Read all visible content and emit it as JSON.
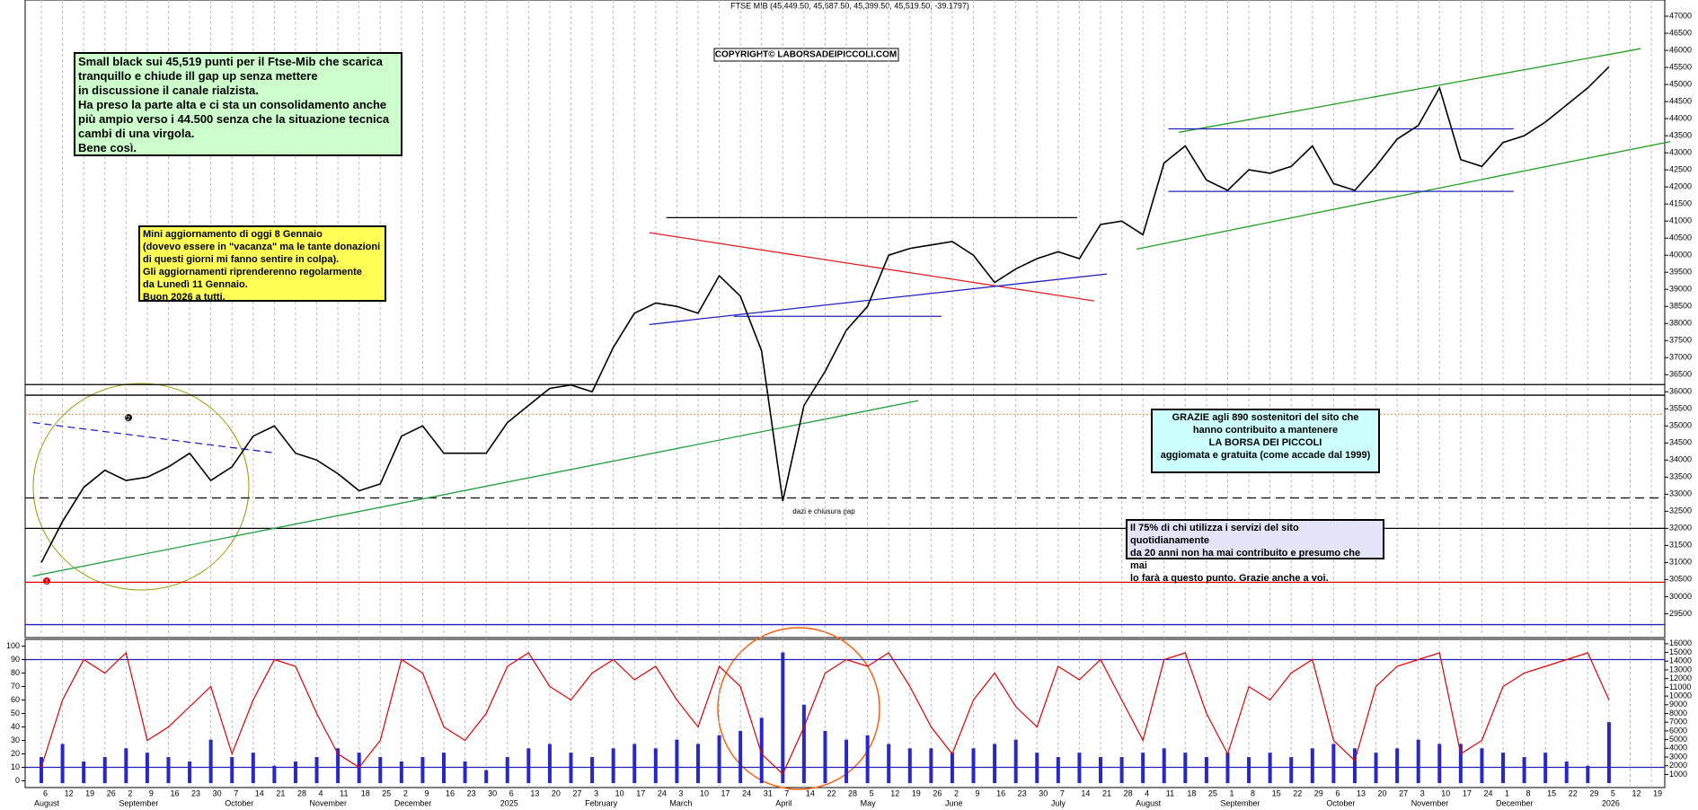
{
  "header": "FTSE MIB (45,449.50, 45,687.50, 45,399.50, 45,519.50, -39.1797)",
  "copyright": "COPYRIGHT© LABORSADEIPICCOLI.COM",
  "gap_note": "dazi e chiusura gap",
  "markers": [
    "1",
    "2"
  ],
  "notes": [
    {
      "fill": "#ccffcc",
      "lines": [
        "Small black sui 45,519 punti per il Ftse-Mib che scarica",
        "tranquillo e chiude ill gap up senza mettere",
        "in discussione il canale rialzista.",
        "Ha preso la parte alta e ci sta un consolidamento anche",
        "più ampio verso i 44.500 senza che la situazione tecnica",
        "cambi di una virgola.",
        "Bene così."
      ]
    },
    {
      "fill": "#ffff55",
      "lines": [
        "Mini aggiornamento di oggi 8 Gennaio",
        "(dovevo essere in \"vacanza\" ma le tante donazioni",
        "di questi giorni mi fanno sentire in colpa).",
        "Gli aggiornamenti riprenderenno regolarmente",
        "da Lunedì 11 Gennaio.",
        "Buon 2026 a tutti."
      ]
    },
    {
      "fill": "#ccffff",
      "lines": [
        "GRAZIE agli 890  sostenitori del sito che",
        "hanno contribuito a mantenere",
        "LA BORSA DEI PICCOLI",
        "aggiomata e gratuita (come accade dal 1999)"
      ]
    },
    {
      "fill": "#e4e4f8",
      "lines": [
        "Il 75% di chi utilizza i servizi del sito quotidianamente",
        "da 20 anni non ha mai contribuito e presumo che mai",
        "lo farà a questo punto. Grazie anche a voi."
      ]
    }
  ],
  "chart_data": [
    {
      "type": "line",
      "grid": "vertical",
      "categories": [
        "6",
        "12",
        "19",
        "26",
        "2",
        "9",
        "16",
        "23",
        "30",
        "7",
        "14",
        "21",
        "28",
        "4",
        "11",
        "18",
        "25",
        "2",
        "9",
        "16",
        "23",
        "30",
        "6",
        "13",
        "20",
        "27",
        "3",
        "10",
        "17",
        "24",
        "3",
        "10",
        "17",
        "24",
        "31",
        "7",
        "14",
        "22",
        "28",
        "5",
        "12",
        "19",
        "26",
        "2",
        "9",
        "16",
        "23",
        "30",
        "7",
        "14",
        "21",
        "28",
        "4",
        "11",
        "18",
        "25",
        "1",
        "8",
        "15",
        "22",
        "29",
        "6",
        "13",
        "20",
        "27",
        "3",
        "10",
        "17",
        "24",
        "1",
        "8",
        "15",
        "22",
        "29",
        "5",
        "12",
        "19"
      ],
      "months": [
        {
          "label": "August",
          "at": 0
        },
        {
          "label": "September",
          "at": 4
        },
        {
          "label": "October",
          "at": 9
        },
        {
          "label": "November",
          "at": 13
        },
        {
          "label": "December",
          "at": 17
        },
        {
          "label": "2025",
          "at": 22
        },
        {
          "label": "February",
          "at": 26
        },
        {
          "label": "March",
          "at": 30
        },
        {
          "label": "April",
          "at": 35
        },
        {
          "label": "May",
          "at": 39
        },
        {
          "label": "June",
          "at": 43
        },
        {
          "label": "July",
          "at": 48
        },
        {
          "label": "August",
          "at": 52
        },
        {
          "label": "September",
          "at": 56
        },
        {
          "label": "October",
          "at": 61
        },
        {
          "label": "November",
          "at": 65
        },
        {
          "label": "December",
          "at": 69
        },
        {
          "label": "2026",
          "at": 74
        }
      ],
      "series": [
        {
          "color": "#000000",
          "values": [
            31000,
            32200,
            33200,
            33700,
            33400,
            33500,
            33800,
            34200,
            33400,
            33800,
            34700,
            35000,
            34200,
            34000,
            33600,
            33100,
            33300,
            34700,
            35000,
            34200,
            34200,
            34200,
            35100,
            35600,
            36100,
            36200,
            36000,
            37300,
            38300,
            38600,
            38500,
            38300,
            39400,
            38800,
            37200,
            32800,
            35600,
            36600,
            37800,
            38500,
            40000,
            40200,
            40300,
            40400,
            40000,
            39200,
            39600,
            39900,
            40100,
            39900,
            40900,
            41000,
            40600,
            42700,
            43200,
            42200,
            41900,
            42500,
            42400,
            42600,
            43200,
            42100,
            41900,
            42600,
            43400,
            43800,
            44900,
            42800,
            42600,
            43300,
            43500,
            43900,
            44400,
            44900,
            45519,
            null,
            null
          ]
        }
      ],
      "ylim": [
        28800,
        47475
      ],
      "yticks": [
        29500,
        30000,
        30500,
        31000,
        31500,
        32000,
        32500,
        33000,
        33500,
        34000,
        34500,
        35000,
        35500,
        36000,
        36500,
        37000,
        37500,
        38000,
        38500,
        39000,
        39500,
        40000,
        40500,
        41000,
        41500,
        42000,
        42500,
        43000,
        43500,
        44000,
        44500,
        45000,
        45500,
        46000,
        46500,
        47000
      ],
      "levels": [
        {
          "value": 36210,
          "color": "#000000"
        },
        {
          "value": 35900,
          "color": "#000000"
        },
        {
          "value": 35340,
          "color": "#e0a060",
          "dash": "2,2"
        },
        {
          "value": 32890,
          "color": "#000000",
          "dash": "10,6"
        },
        {
          "value": 32000,
          "color": "#000000"
        },
        {
          "value": 30420,
          "color": "#e00000"
        },
        {
          "value": 29180,
          "color": "#2020c0"
        }
      ],
      "trendlines": [
        {
          "from": [
            53.7,
            43600
          ],
          "to": [
            75.5,
            46050
          ],
          "color": "#20a020"
        },
        {
          "from": [
            51.7,
            40180
          ],
          "to": [
            76.9,
            43330
          ],
          "color": "#20a020"
        },
        {
          "from": [
            -0.4,
            30600
          ],
          "to": [
            41.4,
            35740
          ],
          "color": "#20a040"
        },
        {
          "from": [
            -0.4,
            35100
          ],
          "to": [
            11,
            34210
          ],
          "color": "#2020c0",
          "dash": "8,5"
        },
        {
          "from": [
            28.7,
            40660
          ],
          "to": [
            49.7,
            38660
          ],
          "color": "#e02020"
        },
        {
          "from": [
            28.7,
            37970
          ],
          "to": [
            50.3,
            39450
          ],
          "color": "#2020c0"
        },
        {
          "from": [
            29.5,
            41100
          ],
          "to": [
            48.9,
            41100
          ],
          "color": "#000000"
        },
        {
          "from": [
            53.2,
            43700
          ],
          "to": [
            69.5,
            43700
          ],
          "color": "#2020c0"
        },
        {
          "from": [
            53.2,
            41870
          ],
          "to": [
            69.5,
            41870
          ],
          "color": "#2020c0"
        },
        {
          "from": [
            32.7,
            38210
          ],
          "to": [
            42.5,
            38210
          ],
          "color": "#2020c0"
        }
      ]
    },
    {
      "type": "line",
      "series": [
        {
          "color": "#e00000",
          "values": [
            10,
            60,
            90,
            80,
            95,
            30,
            40,
            55,
            70,
            20,
            60,
            90,
            85,
            50,
            20,
            10,
            30,
            90,
            80,
            40,
            30,
            50,
            85,
            95,
            70,
            60,
            80,
            90,
            75,
            85,
            60,
            40,
            85,
            70,
            20,
            5,
            40,
            80,
            90,
            85,
            95,
            70,
            40,
            20,
            60,
            80,
            55,
            40,
            85,
            75,
            90,
            60,
            30,
            90,
            95,
            50,
            20,
            70,
            60,
            80,
            90,
            30,
            15,
            70,
            85,
            90,
            95,
            20,
            30,
            70,
            80,
            85,
            90,
            95,
            60,
            null,
            null
          ]
        },
        {
          "type": "bar",
          "axis": "y2",
          "color": "#2828c8",
          "values": [
            3000,
            4500,
            2500,
            3000,
            4000,
            3500,
            3000,
            2500,
            5000,
            3000,
            3500,
            2000,
            2500,
            3000,
            4000,
            3500,
            3000,
            2500,
            3000,
            3500,
            2500,
            1500,
            3000,
            4000,
            4500,
            3500,
            3000,
            4000,
            4500,
            4000,
            5000,
            4500,
            5500,
            6000,
            7500,
            15000,
            9000,
            6000,
            5000,
            5500,
            4500,
            4000,
            4000,
            3500,
            4000,
            4500,
            5000,
            3500,
            3000,
            3500,
            3000,
            3000,
            3500,
            4000,
            3500,
            3000,
            3500,
            3000,
            3500,
            3000,
            4000,
            4500,
            4000,
            3500,
            4000,
            5000,
            4500,
            4500,
            4000,
            3500,
            3000,
            3500,
            2500,
            2000,
            7000,
            null,
            null
          ]
        }
      ],
      "ylim": [
        -5,
        105
      ],
      "yticks": [
        0,
        10,
        20,
        30,
        40,
        50,
        60,
        70,
        80,
        90,
        100
      ],
      "y2lim": [
        -500,
        16500
      ],
      "y2ticks": [
        1000,
        2000,
        3000,
        4000,
        5000,
        6000,
        7000,
        8000,
        9000,
        10000,
        11000,
        12000,
        13000,
        14000,
        15000,
        16000
      ],
      "levels": [
        {
          "value": 90,
          "color": "#2020c0"
        },
        {
          "value": 10,
          "color": "#2020c0"
        }
      ]
    }
  ]
}
